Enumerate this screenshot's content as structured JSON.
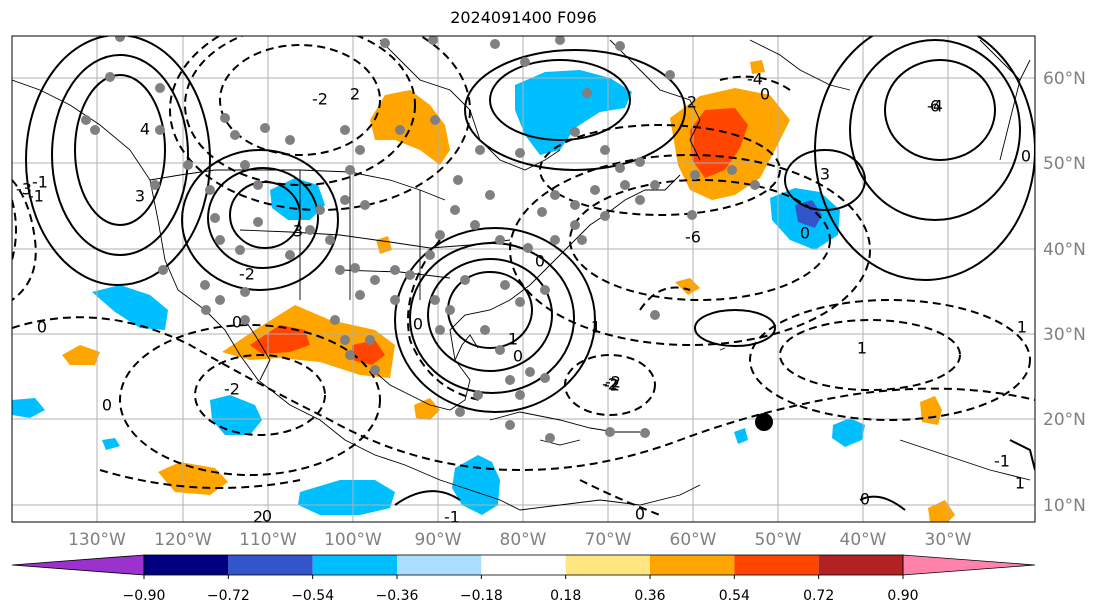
{
  "title": "2024091400 F096",
  "map": {
    "lon_labels": [
      "130°W",
      "120°W",
      "110°W",
      "100°W",
      "90°W",
      "80°W",
      "70°W",
      "60°W",
      "50°W",
      "40°W",
      "30°W"
    ],
    "lat_labels": [
      "60°N",
      "50°N",
      "40°N",
      "30°N",
      "20°N",
      "10°N"
    ],
    "label_color": "#808080",
    "contour_labels": [
      "-2",
      "-2",
      "0",
      "0",
      "0",
      "0",
      "0",
      "0",
      "0",
      "0",
      "0",
      "0",
      "0",
      "1",
      "1",
      "1",
      "-1",
      "-1",
      "2",
      "2",
      "2",
      "-2",
      "-2",
      "3",
      "3",
      "3",
      "-3",
      "4",
      "-4",
      "-4",
      "6",
      "-6",
      "-1",
      "-1",
      "1",
      "-2",
      "-2",
      "0",
      "1"
    ],
    "marker_color": "#808080",
    "storm_marker_color": "#000000"
  },
  "colorbar": {
    "tick_labels": [
      "−0.90",
      "−0.72",
      "−0.54",
      "−0.36",
      "−0.18",
      "0.18",
      "0.36",
      "0.54",
      "0.72",
      "0.90"
    ],
    "colors": [
      "#9b32cd",
      "#000080",
      "#3355cc",
      "#00bfff",
      "#aadeff",
      "#ffffff",
      "#ffe680",
      "#ffa500",
      "#ff4500",
      "#b22222",
      "#ff82ab"
    ],
    "under_color": "#9b32cd",
    "over_color": "#ff82ab"
  }
}
